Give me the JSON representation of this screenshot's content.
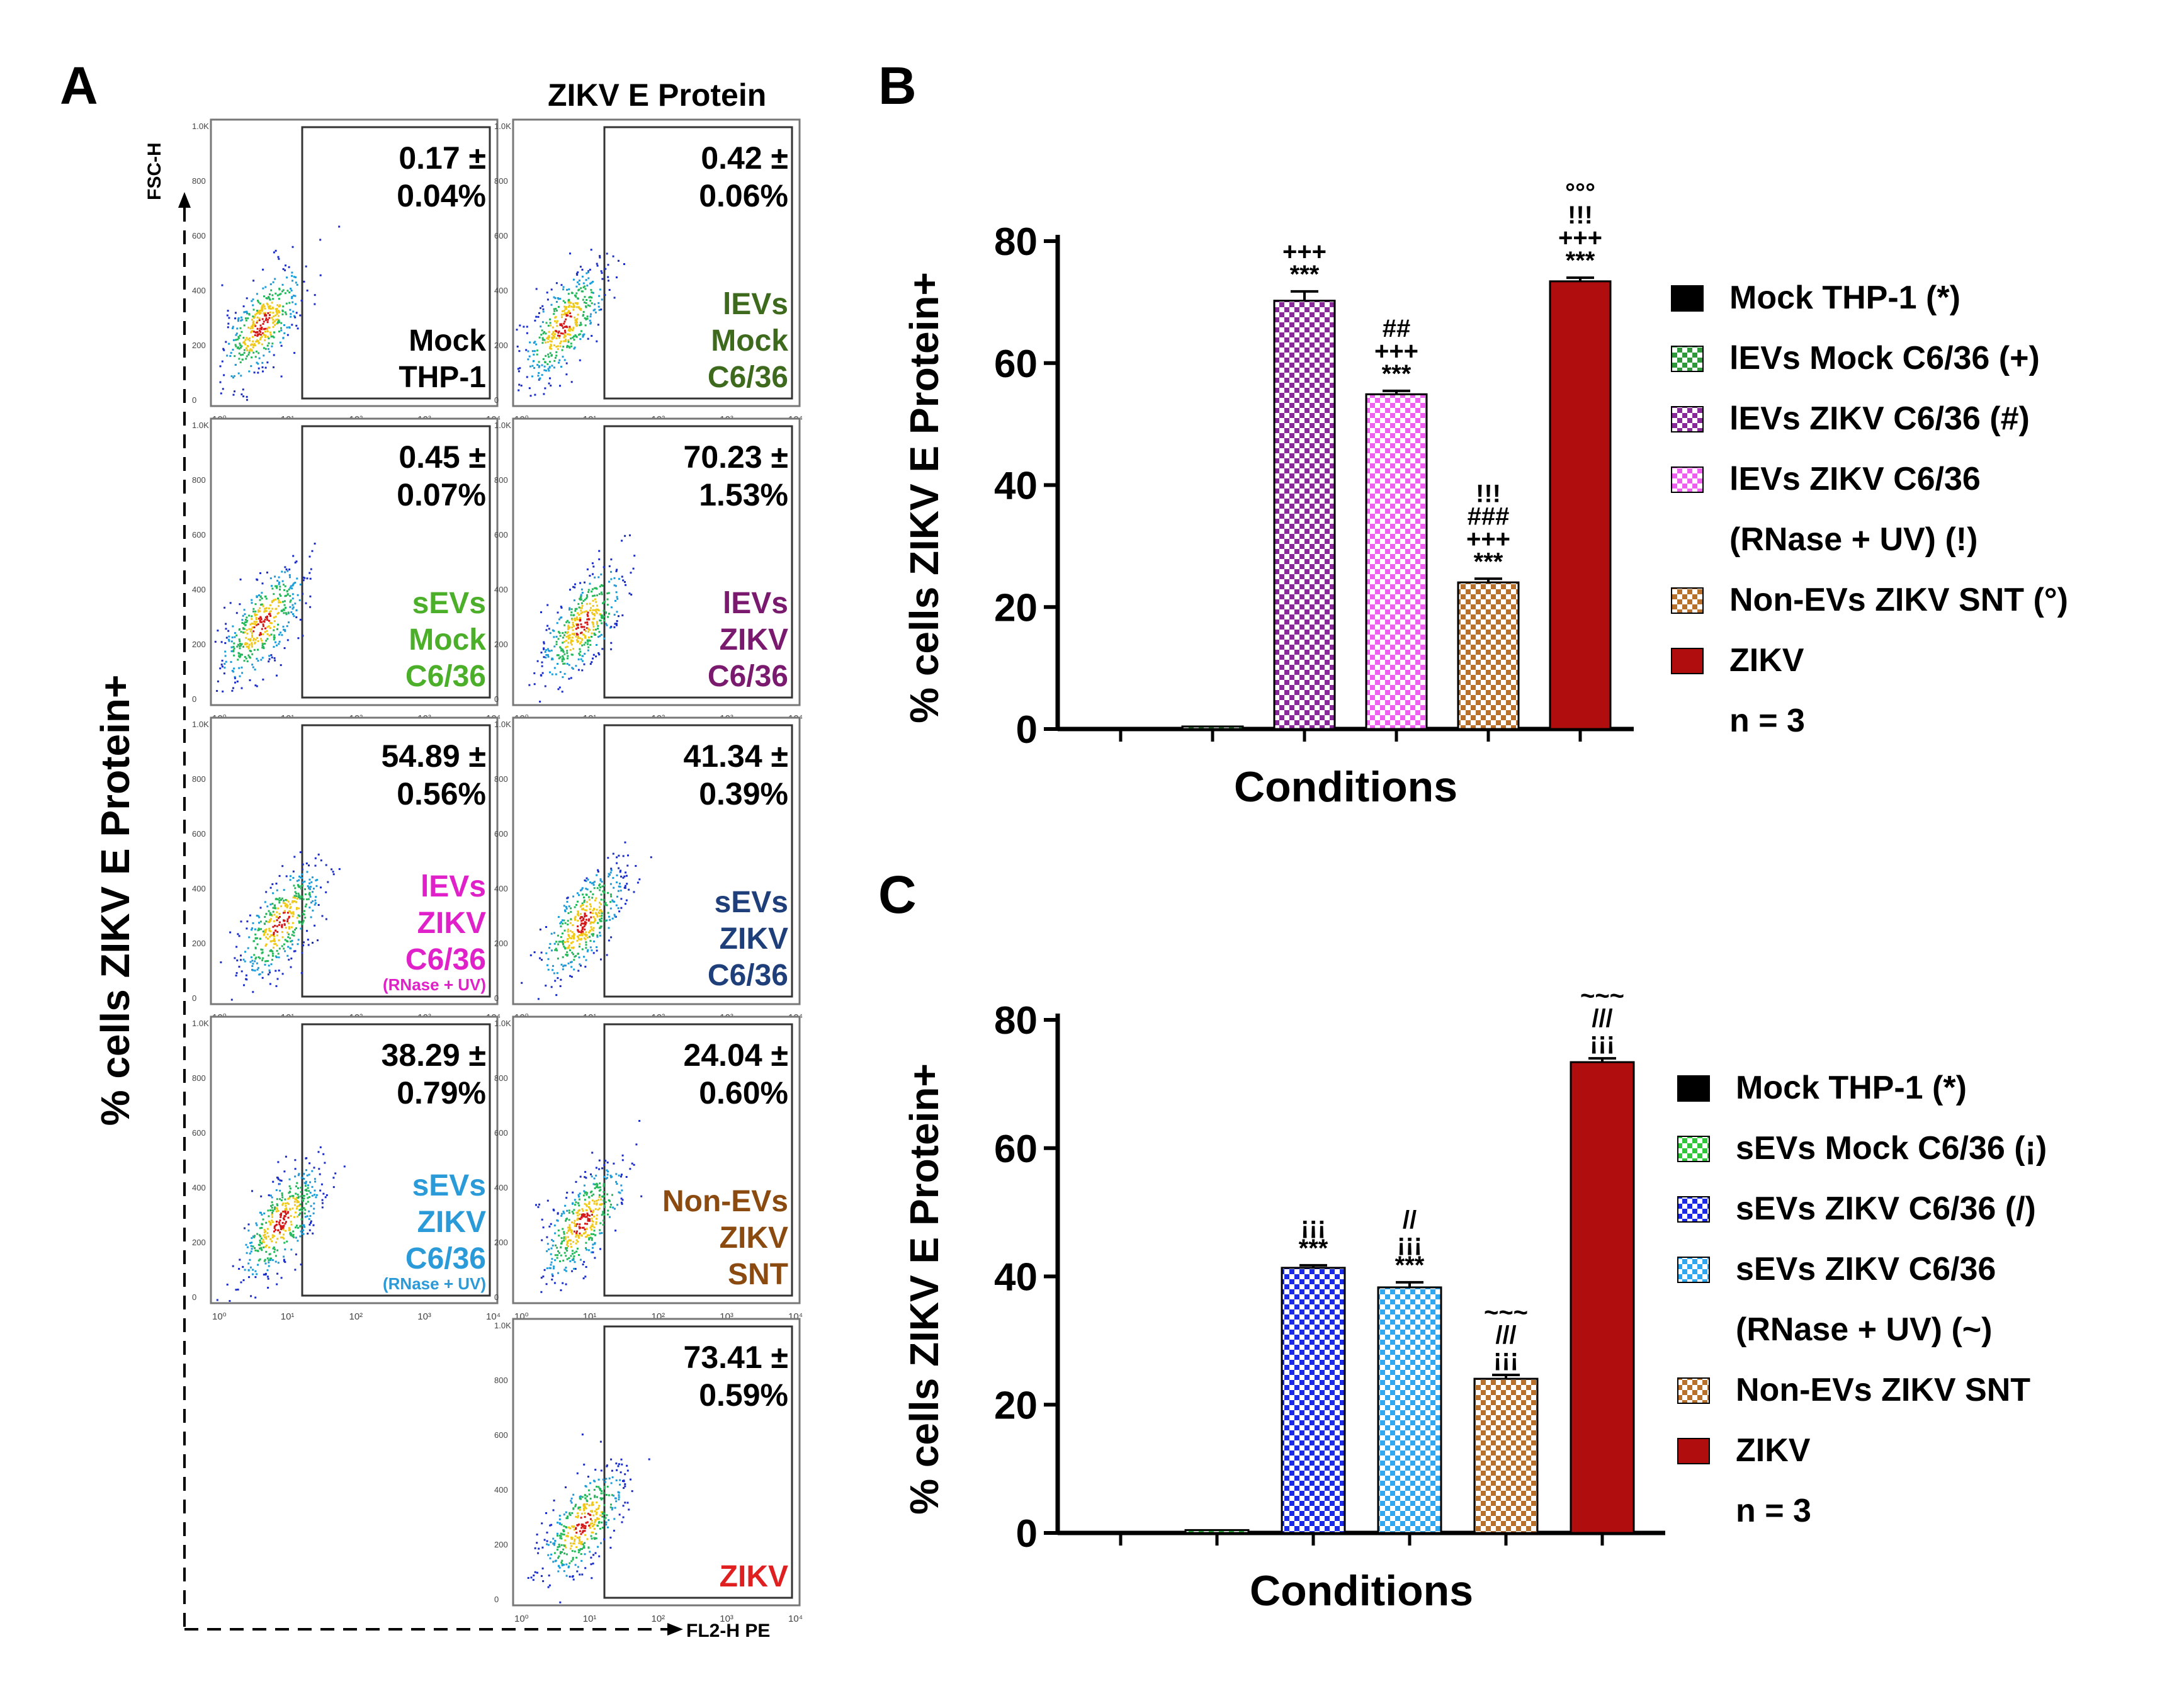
{
  "panel_A": {
    "letter": "A",
    "header": "ZIKV E Protein",
    "y_axis_label": "% cells ZIKV E Protein+",
    "fsc_label": "FSC-H",
    "fl2_label": "FL2-H PE",
    "plots": [
      {
        "value": "0.17 ±",
        "sd": "0.04%",
        "label": [
          "Mock",
          "THP-1"
        ],
        "sub": "",
        "color": "#000000"
      },
      {
        "value": "0.42 ±",
        "sd": "0.06%",
        "label": [
          "lEVs",
          "Mock",
          "C6/36"
        ],
        "sub": "",
        "color": "#3d6a1c"
      },
      {
        "value": "0.45 ±",
        "sd": "0.07%",
        "label": [
          "sEVs",
          "Mock",
          "C6/36"
        ],
        "sub": "",
        "color": "#4caf2a"
      },
      {
        "value": "70.23 ±",
        "sd": "1.53%",
        "label": [
          "lEVs",
          "ZIKV",
          "C6/36"
        ],
        "sub": "",
        "color": "#7a1a6e"
      },
      {
        "value": "54.89 ±",
        "sd": "0.56%",
        "label": [
          "lEVs",
          "ZIKV",
          "C6/36"
        ],
        "sub": "(RNase + UV)",
        "color": "#e020c8"
      },
      {
        "value": "41.34 ±",
        "sd": "0.39%",
        "label": [
          "sEVs",
          "ZIKV",
          "C6/36"
        ],
        "sub": "",
        "color": "#1f3f7a"
      },
      {
        "value": "38.29 ±",
        "sd": "0.79%",
        "label": [
          "sEVs",
          "ZIKV",
          "C6/36"
        ],
        "sub": "(RNase + UV)",
        "color": "#2a9ad8"
      },
      {
        "value": "24.04 ±",
        "sd": "0.60%",
        "label": [
          "Non-EVs",
          "ZIKV",
          "SNT"
        ],
        "sub": "",
        "color": "#8a4a10"
      },
      {
        "value": "73.41 ±",
        "sd": "0.59%",
        "label": [
          "ZIKV"
        ],
        "sub": "",
        "color": "#e02020"
      }
    ],
    "tick_labels": [
      "10⁰",
      "10¹",
      "10²",
      "10³",
      "10⁴"
    ],
    "ytick_labels": [
      "1.0K",
      "800",
      "600",
      "400",
      "200",
      "0"
    ]
  },
  "chart_data": [
    {
      "type": "bar",
      "panel": "B",
      "ylabel": "% cells ZIKV E Protein+",
      "xlabel": "Conditions",
      "ylim": [
        0,
        80
      ],
      "yticks": [
        "0",
        "20",
        "40",
        "60",
        "80"
      ],
      "categories": [
        "Mock THP-1 (*)",
        "lEVs Mock C6/36 (+)",
        "lEVs ZIKV C6/36 (#)",
        "lEVs ZIKV C6/36 (RNase + UV) (!)",
        "Non-EVs ZIKV SNT (°)",
        "ZIKV"
      ],
      "values": [
        0.17,
        0.42,
        70.23,
        54.89,
        24.04,
        73.41
      ],
      "errors": [
        0.04,
        0.06,
        1.53,
        0.56,
        0.6,
        0.59
      ],
      "colors": [
        "#000000",
        "#2e9a3a",
        "#8a2a9a",
        "#f060f0",
        "#b8702a",
        "#b00e0e"
      ],
      "patterns": [
        "solid",
        "check",
        "check",
        "check",
        "check",
        "solid"
      ],
      "significance": [
        [],
        [],
        [
          "***",
          "+++"
        ],
        [
          "***",
          "+++",
          "##"
        ],
        [
          "***",
          "+++",
          "###",
          "!!!"
        ],
        [
          "***",
          "+++",
          "!!!",
          "°°°"
        ]
      ],
      "legend": [
        "Mock THP-1 (*)",
        "lEVs Mock C6/36 (+)",
        "lEVs ZIKV C6/36 (#)",
        "lEVs ZIKV C6/36",
        "(RNase + UV) (!)",
        "Non-EVs ZIKV SNT (°)",
        "ZIKV",
        "n = 3"
      ]
    },
    {
      "type": "bar",
      "panel": "C",
      "ylabel": "% cells ZIKV E Protein+",
      "xlabel": "Conditions",
      "ylim": [
        0,
        80
      ],
      "yticks": [
        "0",
        "20",
        "40",
        "60",
        "80"
      ],
      "categories": [
        "Mock THP-1 (*)",
        "sEVs Mock C6/36 (¡)",
        "sEVs ZIKV C6/36 (/)",
        "sEVs ZIKV C6/36 (RNase + UV) (~)",
        "Non-EVs ZIKV SNT",
        "ZIKV"
      ],
      "values": [
        0.17,
        0.45,
        41.34,
        38.29,
        24.04,
        73.41
      ],
      "errors": [
        0.04,
        0.07,
        0.39,
        0.79,
        0.6,
        0.59
      ],
      "colors": [
        "#000000",
        "#2ec83a",
        "#1a2ae8",
        "#30a8f0",
        "#b8702a",
        "#b00e0e"
      ],
      "patterns": [
        "solid",
        "check",
        "check",
        "check",
        "check",
        "solid"
      ],
      "significance": [
        [],
        [],
        [
          "***",
          "¡¡¡"
        ],
        [
          "***",
          "¡¡¡",
          "//"
        ],
        [
          "¡¡¡",
          "///",
          "~~~"
        ],
        [
          "¡¡¡",
          "///",
          "~~~"
        ]
      ],
      "legend": [
        "Mock THP-1 (*)",
        "sEVs Mock C6/36 (¡)",
        "sEVs ZIKV C6/36 (/)",
        "sEVs ZIKV C6/36",
        "(RNase + UV) (~)",
        "Non-EVs ZIKV SNT",
        "ZIKV",
        "n = 3"
      ]
    }
  ]
}
